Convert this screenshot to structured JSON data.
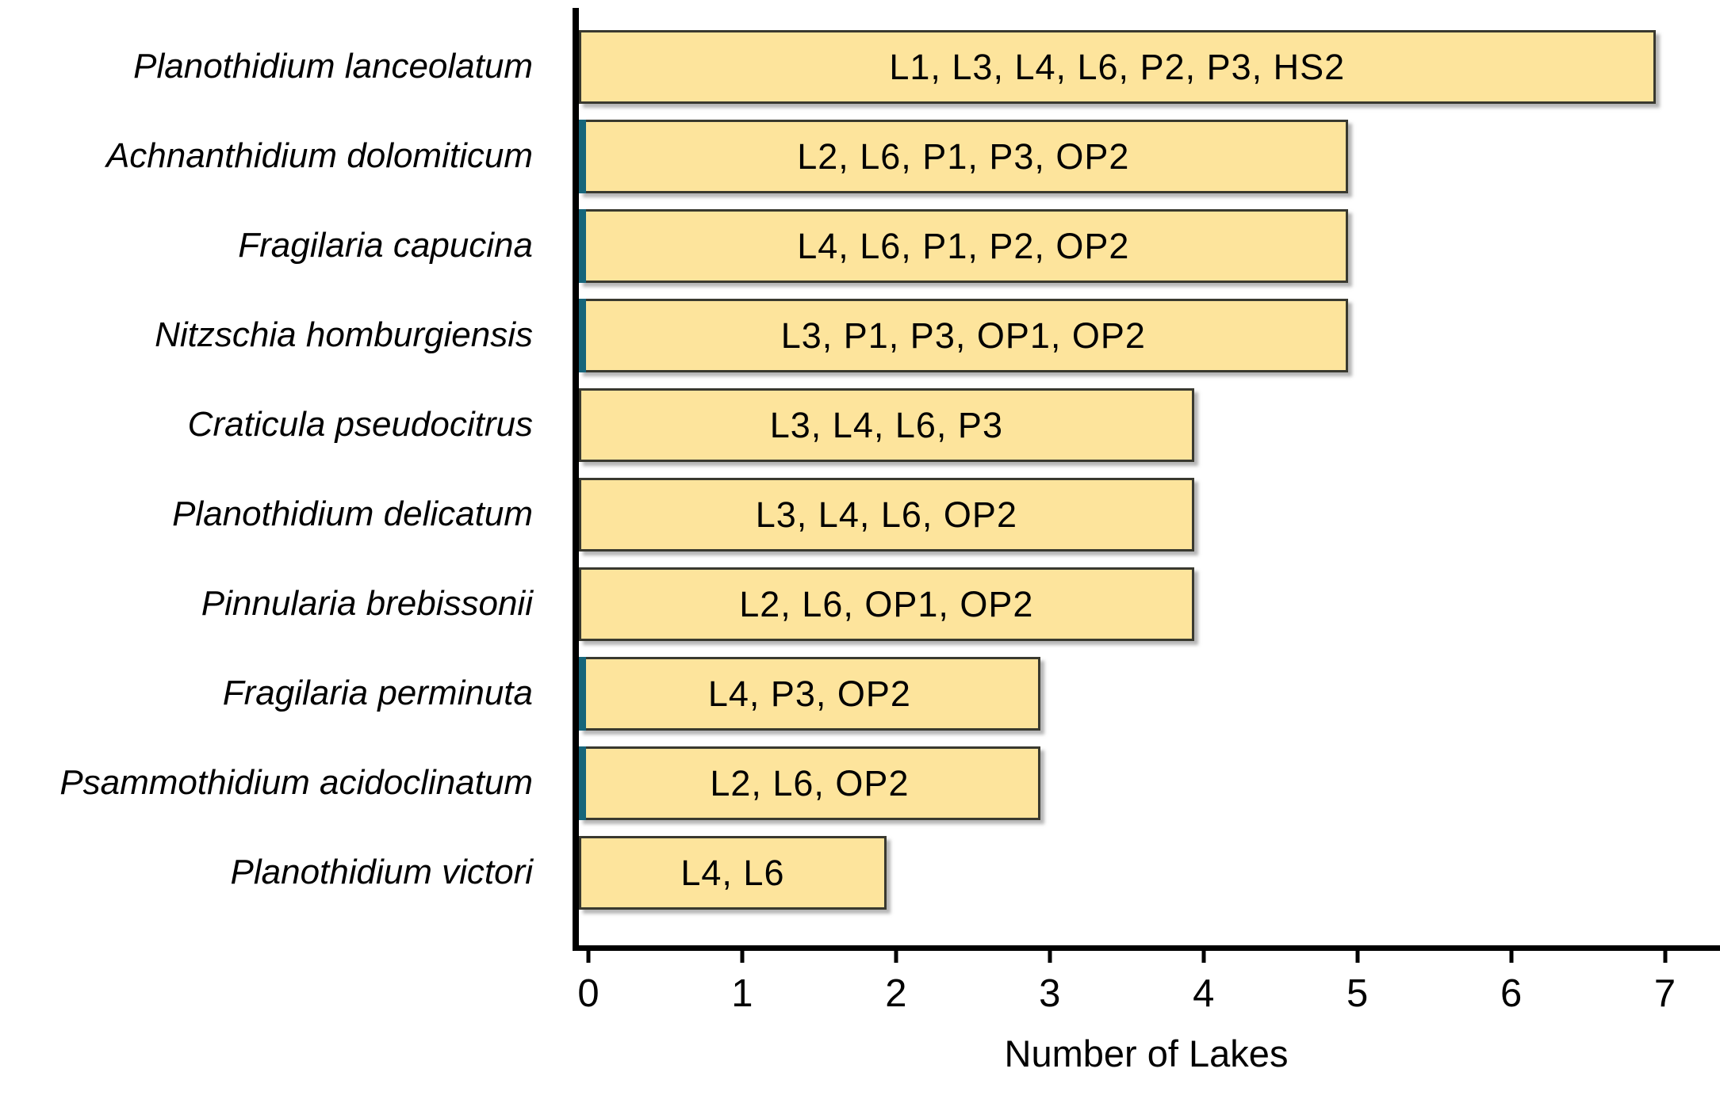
{
  "chart_data": {
    "type": "bar",
    "orientation": "horizontal",
    "title": "",
    "xlabel": "Number of Lakes",
    "ylabel": "",
    "xlim": [
      0,
      7.42
    ],
    "grid": false,
    "legend": false,
    "x_ticks": [
      "0",
      "1",
      "2",
      "3",
      "4",
      "5",
      "6",
      "7"
    ],
    "categories": [
      "Planothidium lanceolatum",
      "Achnanthidium dolomiticum",
      "Fragilaria capucina",
      "Nitzschia homburgiensis",
      "Craticula pseudocitrus",
      "Planothidium delicatum",
      "Pinnularia brebissonii",
      "Fragilaria perminuta",
      "Psammothidium acidoclinatum",
      "Planothidium victori"
    ],
    "values": [
      7,
      5,
      5,
      5,
      4,
      4,
      4,
      3,
      3,
      2
    ],
    "bar_labels": [
      "L1, L3, L4, L6, P2, P3, HS2",
      "L2, L6, P1, P3, OP2",
      "L4, L6, P1, P2, OP2",
      "L3, P1, P3, OP1, OP2",
      "L3, L4, L6, P3",
      "L3, L4, L6, OP2",
      "L2, L6, OP1, OP2",
      "L4, P3, OP2",
      "L2, L6, OP2",
      "L4, L6"
    ],
    "accent_bars": [
      1,
      2,
      3,
      7,
      8
    ],
    "colors": {
      "bar_fill": "#fde49c",
      "bar_border": "#39392f",
      "accent_teal": "#17657a",
      "axis": "#000000",
      "text": "#000000",
      "background": "#ffffff"
    }
  }
}
